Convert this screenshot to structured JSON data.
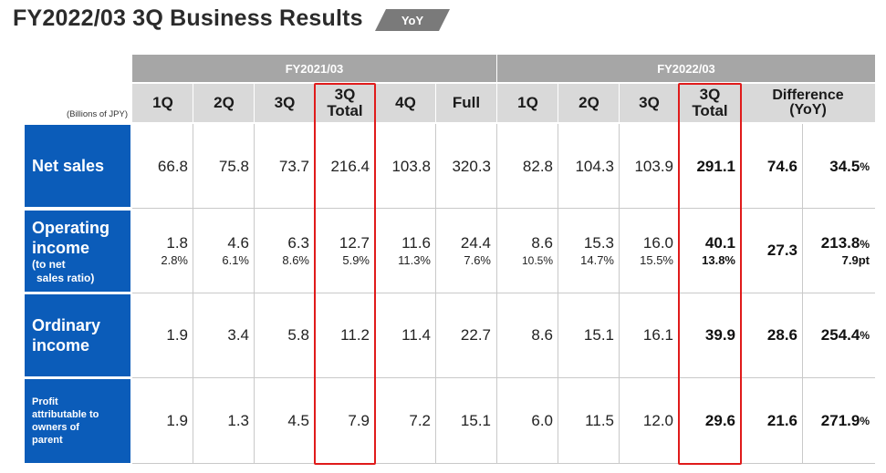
{
  "title": "FY2022/03 3Q Business Results",
  "badge": "YoY",
  "units": "(Billions of JPY)",
  "groups": {
    "fy21": "FY2021/03",
    "fy22": "FY2022/03"
  },
  "columns": {
    "fy21_1q": "1Q",
    "fy21_2q": "2Q",
    "fy21_3q": "3Q",
    "fy21_3qt_a": "3Q",
    "fy21_3qt_b": "Total",
    "fy21_4q": "4Q",
    "fy21_full": "Full",
    "fy22_1q": "1Q",
    "fy22_2q": "2Q",
    "fy22_3q": "3Q",
    "fy22_3qt_a": "3Q",
    "fy22_3qt_b": "Total",
    "diff_a": "Difference",
    "diff_b": "(YoY)"
  },
  "rows": {
    "net_sales": {
      "label": "Net sales",
      "values": [
        "66.8",
        "75.8",
        "73.7",
        "216.4",
        "103.8",
        "320.3",
        "82.8",
        "104.3",
        "103.9",
        "291.1",
        "74.6",
        "34.5"
      ],
      "pct_sym": "%"
    },
    "operating": {
      "label_a": "Operating",
      "label_b": "income",
      "label_c": "(to net",
      "label_d": "sales ratio)",
      "values": [
        "1.8",
        "4.6",
        "6.3",
        "12.7",
        "11.6",
        "24.4",
        "8.6",
        "15.3",
        "16.0",
        "40.1",
        "27.3",
        "213.8"
      ],
      "ratios": [
        "2.8%",
        "6.1%",
        "8.6%",
        "5.9%",
        "11.3%",
        "7.6%",
        "10.5%",
        "14.7%",
        "15.5%",
        "13.8%",
        "",
        "7.9pt"
      ],
      "pct_sym": "%"
    },
    "ordinary": {
      "label_a": "Ordinary",
      "label_b": "income",
      "values": [
        "1.9",
        "3.4",
        "5.8",
        "11.2",
        "11.4",
        "22.7",
        "8.6",
        "15.1",
        "16.1",
        "39.9",
        "28.6",
        "254.4"
      ],
      "pct_sym": "%"
    },
    "profit": {
      "label_a": "Profit",
      "label_b": "attributable to",
      "label_c": "owners of",
      "label_d": "parent",
      "values": [
        "1.9",
        "1.3",
        "4.5",
        "7.9",
        "7.2",
        "15.1",
        "6.0",
        "11.5",
        "12.0",
        "29.6",
        "21.6",
        "271.9"
      ],
      "pct_sym": "%"
    }
  },
  "colors": {
    "row_label_bg": "#0b5cb9",
    "highlight": "#e01b1b",
    "group_header": "#a6a6a6",
    "col_header": "#d9d9d9"
  }
}
